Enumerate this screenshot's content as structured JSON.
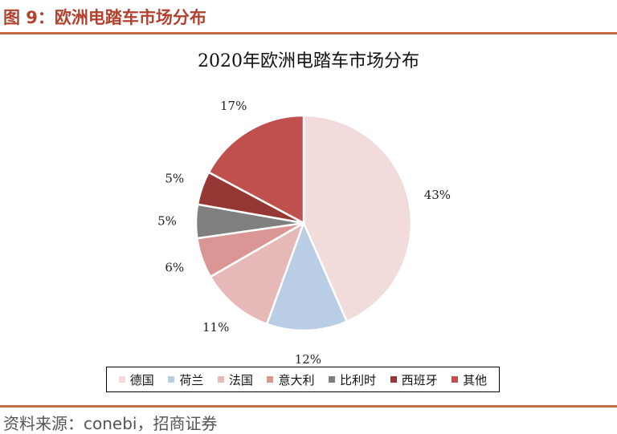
{
  "figure_title": "图 9：欧洲电踏车市场分布",
  "source_text": "资料来源：conebi，招商证券",
  "chart_data": {
    "type": "pie",
    "title": "2020年欧洲电踏车市场分布",
    "legend_position": "bottom",
    "categories": [
      "德国",
      "荷兰",
      "法国",
      "意大利",
      "比利时",
      "西班牙",
      "其他"
    ],
    "values": [
      43,
      12,
      11,
      6,
      5,
      5,
      17
    ],
    "labels": [
      "43%",
      "12%",
      "11%",
      "6%",
      "5%",
      "5%",
      "17%"
    ],
    "colors": [
      "#f2dcdb",
      "#b9cde5",
      "#e6b9b8",
      "#d99694",
      "#7f7f7f",
      "#953735",
      "#c0504d"
    ]
  }
}
